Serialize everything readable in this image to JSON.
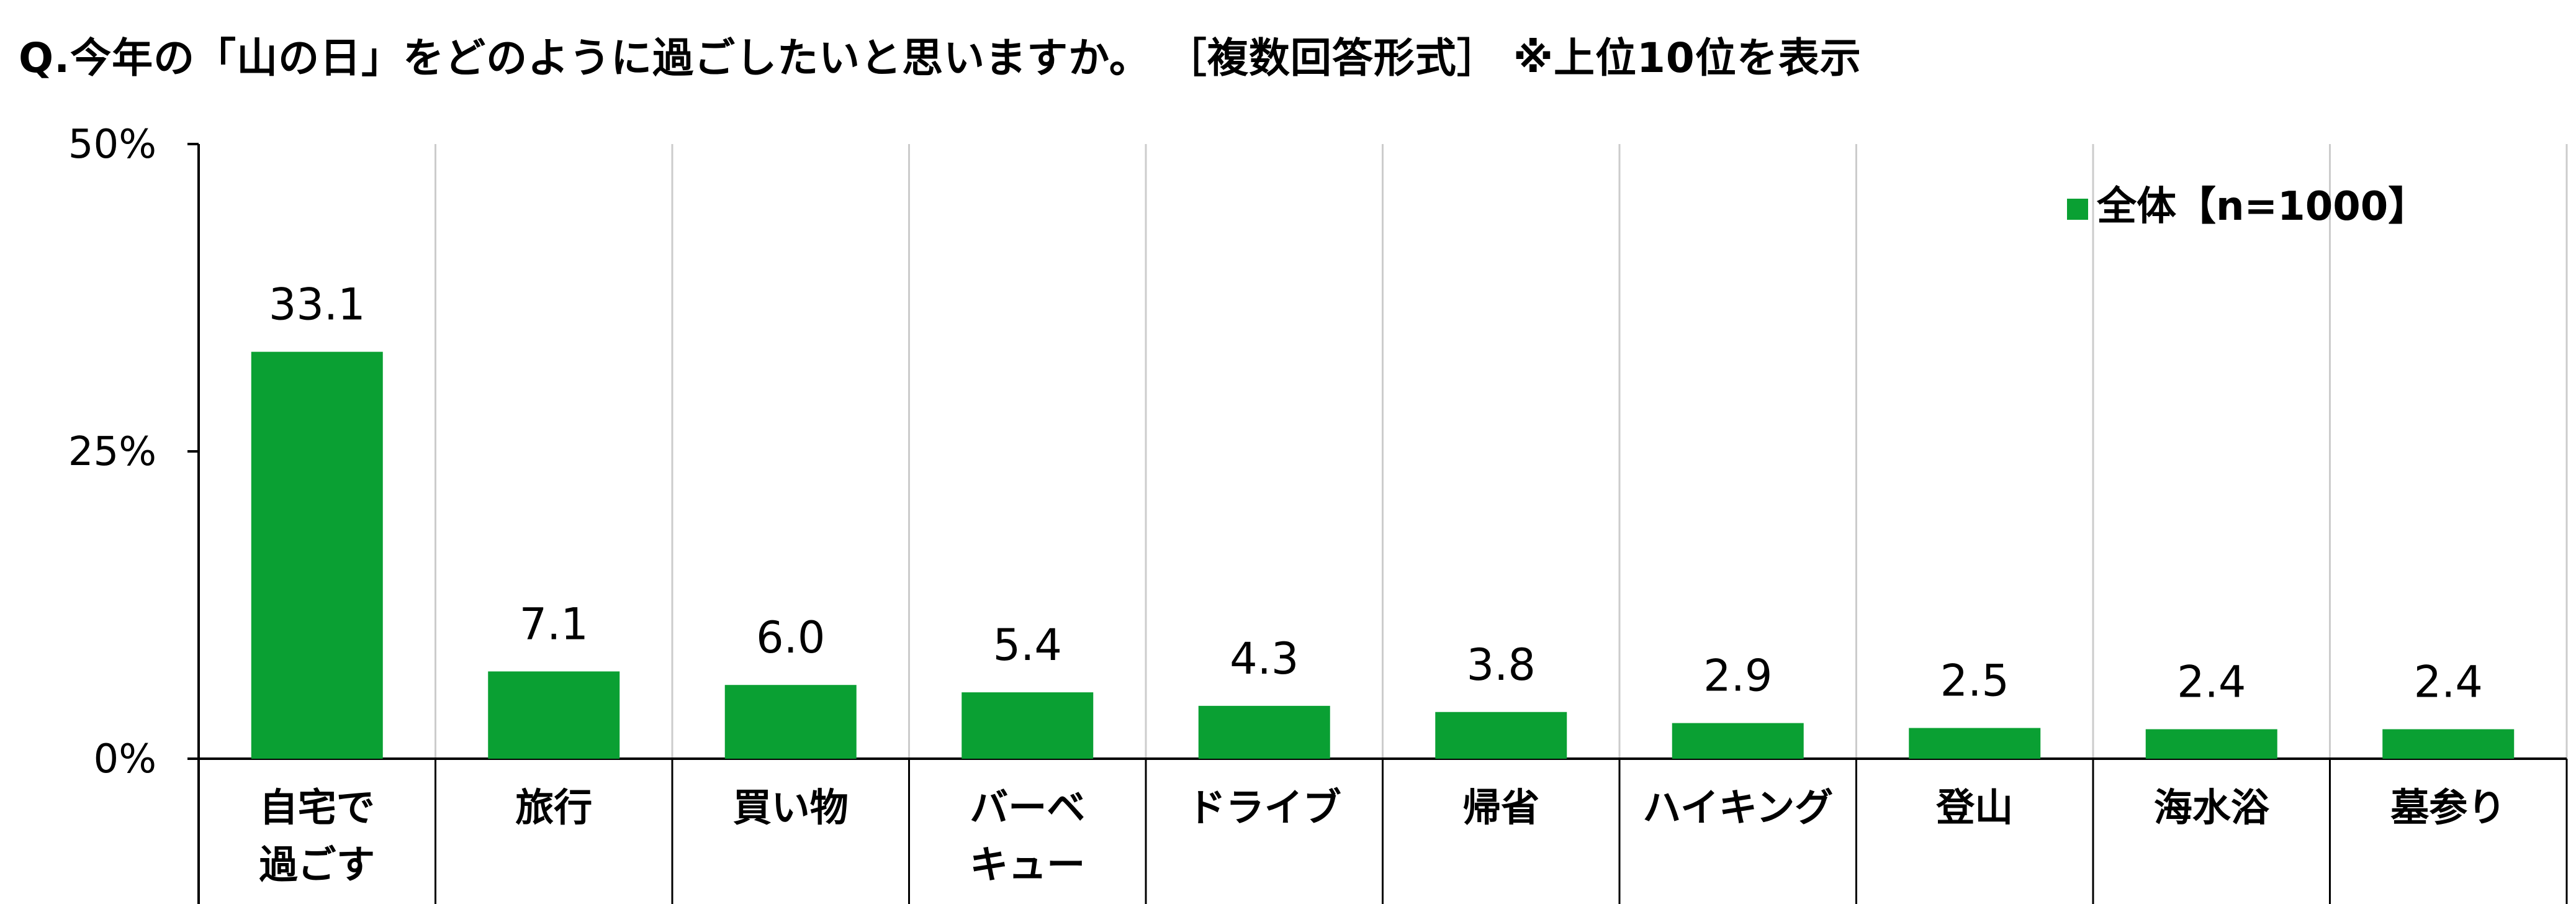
{
  "title": "Q.今年の「山の日」をどのように過ごしたいと思いますか。 ［複数回答形式］ ※上位10位を表示",
  "chart_data": {
    "type": "bar",
    "categories": [
      [
        "自宅で",
        "過ごす"
      ],
      [
        "旅行"
      ],
      [
        "買い物"
      ],
      [
        "バーベ",
        "キュー"
      ],
      [
        "ドライブ"
      ],
      [
        "帰省"
      ],
      [
        "ハイキング"
      ],
      [
        "登山"
      ],
      [
        "海水浴"
      ],
      [
        "墓参り"
      ]
    ],
    "series": [
      {
        "name": "全体【n=1000】",
        "values": [
          33.1,
          7.1,
          6.0,
          5.4,
          4.3,
          3.8,
          2.9,
          2.5,
          2.4,
          2.4
        ],
        "color": "#0aa033"
      }
    ],
    "value_labels": [
      "33.1",
      "7.1",
      "6.0",
      "5.4",
      "4.3",
      "3.8",
      "2.9",
      "2.5",
      "2.4",
      "2.4"
    ],
    "ylim": [
      0,
      50
    ],
    "yticks": [
      0,
      25,
      50
    ],
    "ytick_labels": [
      "0%",
      "25%",
      "50%"
    ],
    "legend": {
      "label": "全体【n=1000】",
      "placement": "top-right"
    },
    "grid": "vertical separators between categories",
    "colors": {
      "bar": "#0aa033",
      "grid": "#cccccc",
      "axis": "#000000"
    }
  }
}
